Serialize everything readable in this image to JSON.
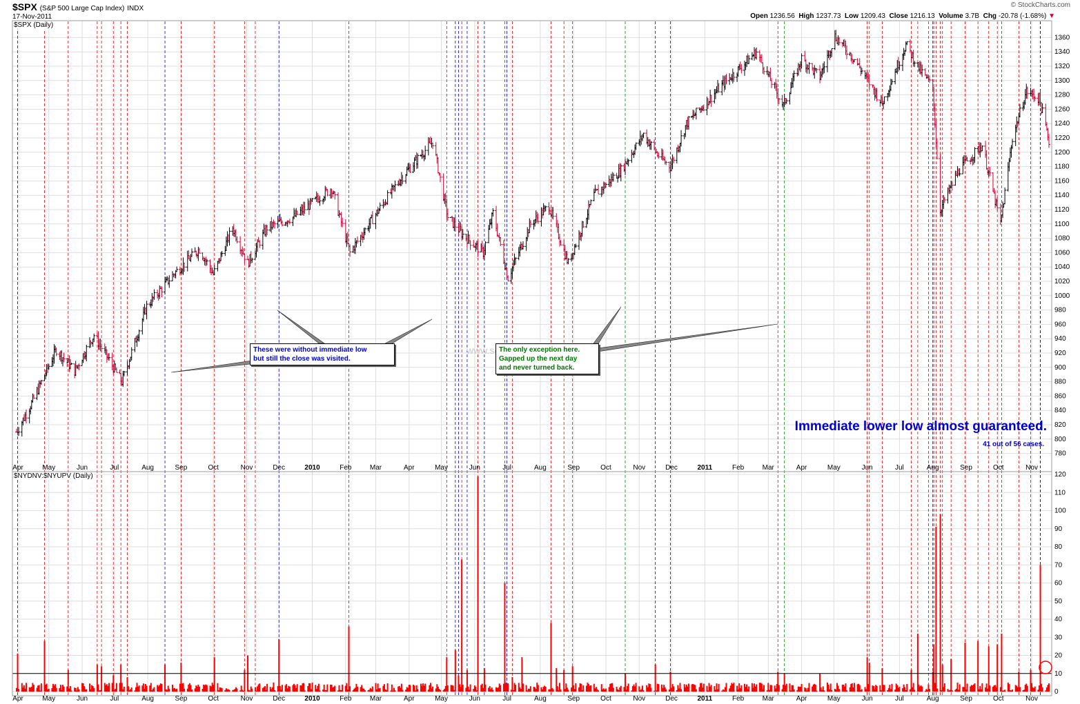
{
  "header": {
    "symbol": "$SPX",
    "description": "(S&P 500 Large Cap Index)",
    "exchange": "INDX",
    "date": "17-Nov-2011",
    "brand": "© StockCharts.com",
    "open_label": "Open",
    "open": "1236.56",
    "high_label": "High",
    "high": "1237.73",
    "low_label": "Low",
    "low": "1209.43",
    "close_label": "Close",
    "close": "1216.13",
    "volume_label": "Volume",
    "volume": "3.7B",
    "chg_label": "Chg",
    "chg": "-20.78 (-1.68%)"
  },
  "colors": {
    "up": "#000000",
    "down": "#cc0033",
    "red_line": "#e00000",
    "blue_line": "#0000cc",
    "green_line": "#008800",
    "bar": "#ff0000",
    "grid": "#dddddd"
  },
  "annotations": {
    "blue_note": [
      "These were without immediate low",
      "but still the close was visited."
    ],
    "green_note": [
      "The only exception here.",
      "Gapped up the next day",
      "and never turned back."
    ],
    "big": "Immediate lower low almost guaranteed.",
    "small": "41 out of 56 cases.",
    "watermark": "www.sobreanalisis.com"
  },
  "chart_data": [
    {
      "type": "candlestick",
      "title": "$SPX (Daily)",
      "ylim": [
        770,
        1370
      ],
      "yticks": [
        780,
        800,
        820,
        840,
        860,
        880,
        900,
        920,
        940,
        960,
        980,
        1000,
        1020,
        1040,
        1060,
        1080,
        1100,
        1120,
        1140,
        1160,
        1180,
        1200,
        1220,
        1240,
        1260,
        1280,
        1300,
        1320,
        1340,
        1360
      ],
      "x_labels": [
        "Apr",
        "May",
        "Jun",
        "Jul",
        "Aug",
        "Sep",
        "Oct",
        "Nov",
        "Dec",
        "2010",
        "Feb",
        "Mar",
        "Apr",
        "May",
        "Jun",
        "Jul",
        "Aug",
        "Sep",
        "Oct",
        "Nov",
        "Dec",
        "2011",
        "Feb",
        "Mar",
        "Apr",
        "May",
        "Jun",
        "Jul",
        "Aug",
        "Sep",
        "Oct",
        "Nov"
      ],
      "x_start": "2009-04-01",
      "x_end": "2011-11-17",
      "close_path": [
        [
          "2009-04-01",
          810
        ],
        [
          "2009-04-15",
          850
        ],
        [
          "2009-05-08",
          925
        ],
        [
          "2009-05-25",
          895
        ],
        [
          "2009-06-12",
          945
        ],
        [
          "2009-07-08",
          880
        ],
        [
          "2009-07-31",
          985
        ],
        [
          "2009-08-25",
          1030
        ],
        [
          "2009-09-18",
          1065
        ],
        [
          "2009-10-01",
          1030
        ],
        [
          "2009-10-19",
          1095
        ],
        [
          "2009-11-02",
          1045
        ],
        [
          "2009-11-20",
          1095
        ],
        [
          "2009-12-15",
          1110
        ],
        [
          "2010-01-19",
          1150
        ],
        [
          "2010-02-05",
          1060
        ],
        [
          "2010-02-25",
          1105
        ],
        [
          "2010-03-25",
          1165
        ],
        [
          "2010-04-23",
          1215
        ],
        [
          "2010-05-07",
          1110
        ],
        [
          "2010-05-21",
          1085
        ],
        [
          "2010-06-09",
          1060
        ],
        [
          "2010-06-18",
          1115
        ],
        [
          "2010-07-02",
          1025
        ],
        [
          "2010-07-23",
          1100
        ],
        [
          "2010-08-09",
          1125
        ],
        [
          "2010-08-27",
          1045
        ],
        [
          "2010-09-20",
          1140
        ],
        [
          "2010-10-15",
          1175
        ],
        [
          "2010-11-05",
          1225
        ],
        [
          "2010-11-19",
          1195
        ],
        [
          "2010-11-30",
          1180
        ],
        [
          "2010-12-15",
          1240
        ],
        [
          "2011-01-18",
          1295
        ],
        [
          "2011-02-18",
          1340
        ],
        [
          "2011-03-15",
          1265
        ],
        [
          "2011-04-01",
          1330
        ],
        [
          "2011-04-18",
          1305
        ],
        [
          "2011-05-02",
          1362
        ],
        [
          "2011-05-20",
          1330
        ],
        [
          "2011-06-15",
          1268
        ],
        [
          "2011-07-07",
          1350
        ],
        [
          "2011-07-20",
          1315
        ],
        [
          "2011-08-01",
          1290
        ],
        [
          "2011-08-08",
          1120
        ],
        [
          "2011-08-25",
          1175
        ],
        [
          "2011-09-16",
          1210
        ],
        [
          "2011-10-03",
          1100
        ],
        [
          "2011-10-14",
          1220
        ],
        [
          "2011-10-27",
          1285
        ],
        [
          "2011-11-08",
          1275
        ],
        [
          "2011-11-17",
          1216
        ]
      ],
      "vertical_markers": {
        "red": [
          "2009-04-27",
          "2009-05-19",
          "2009-06-15",
          "2009-06-19",
          "2009-06-30",
          "2009-07-07",
          "2009-07-13",
          "2009-09-01",
          "2009-10-02",
          "2009-10-30",
          "2009-11-09",
          "2010-02-04",
          "2010-05-06",
          "2010-05-20",
          "2010-06-04",
          "2010-06-29",
          "2010-07-06",
          "2010-08-11",
          "2010-08-23",
          "2010-08-31",
          "2011-03-10",
          "2011-06-01",
          "2011-06-03",
          "2011-06-15",
          "2011-07-12",
          "2011-07-18",
          "2011-07-28",
          "2011-08-02",
          "2011-08-04",
          "2011-08-08",
          "2011-08-10",
          "2011-08-18",
          "2011-08-31",
          "2011-09-12",
          "2011-09-22",
          "2011-09-30",
          "2011-10-04",
          "2011-10-20",
          "2011-10-31",
          "2011-11-09"
        ],
        "blue": [
          "2009-04-02",
          "2009-08-17",
          "2009-12-01",
          "2010-05-14",
          "2010-05-17",
          "2010-05-25",
          "2010-06-10",
          "2010-07-01",
          "2010-11-16",
          "2010-11-30",
          "2011-08-01",
          "2011-11-09"
        ],
        "green": [
          "2010-10-19",
          "2011-03-16"
        ]
      }
    },
    {
      "type": "bar",
      "title": "$NYDNV:$NYUPV (Daily)",
      "ylim": [
        0,
        120
      ],
      "yticks": [
        0,
        10,
        20,
        30,
        40,
        50,
        60,
        70,
        80,
        90,
        100,
        110,
        120
      ],
      "reference_line": 10,
      "spikes": [
        [
          "2009-04-02",
          21
        ],
        [
          "2009-04-27",
          28
        ],
        [
          "2009-05-19",
          12
        ],
        [
          "2009-06-15",
          15
        ],
        [
          "2009-06-19",
          14
        ],
        [
          "2009-06-30",
          9
        ],
        [
          "2009-07-07",
          15
        ],
        [
          "2009-07-13",
          8
        ],
        [
          "2009-08-17",
          15
        ],
        [
          "2009-09-01",
          16
        ],
        [
          "2009-10-02",
          19
        ],
        [
          "2009-10-30",
          12
        ],
        [
          "2009-11-02",
          20
        ],
        [
          "2009-12-01",
          29
        ],
        [
          "2010-02-04",
          36
        ],
        [
          "2010-05-06",
          19
        ],
        [
          "2010-05-14",
          23
        ],
        [
          "2010-05-17",
          9
        ],
        [
          "2010-05-20",
          73
        ],
        [
          "2010-05-25",
          12
        ],
        [
          "2010-06-04",
          119
        ],
        [
          "2010-06-10",
          13
        ],
        [
          "2010-06-29",
          60
        ],
        [
          "2010-07-06",
          8
        ],
        [
          "2010-07-15",
          19
        ],
        [
          "2010-08-11",
          38
        ],
        [
          "2010-08-16",
          13
        ],
        [
          "2010-08-23",
          12
        ],
        [
          "2010-08-31",
          14
        ],
        [
          "2010-10-19",
          10
        ],
        [
          "2010-11-16",
          15
        ],
        [
          "2010-11-30",
          11
        ],
        [
          "2011-03-10",
          11
        ],
        [
          "2011-03-16",
          10
        ],
        [
          "2011-04-18",
          10
        ],
        [
          "2011-06-01",
          19
        ],
        [
          "2011-06-03",
          16
        ],
        [
          "2011-06-15",
          13
        ],
        [
          "2011-07-12",
          12
        ],
        [
          "2011-07-18",
          32
        ],
        [
          "2011-08-01",
          11
        ],
        [
          "2011-08-02",
          26
        ],
        [
          "2011-08-04",
          91
        ],
        [
          "2011-08-08",
          98
        ],
        [
          "2011-08-10",
          15
        ],
        [
          "2011-08-18",
          18
        ],
        [
          "2011-08-31",
          27
        ],
        [
          "2011-09-12",
          28
        ],
        [
          "2011-09-22",
          25
        ],
        [
          "2011-09-30",
          26
        ],
        [
          "2011-10-04",
          32
        ],
        [
          "2011-10-20",
          11
        ],
        [
          "2011-10-31",
          12
        ],
        [
          "2011-11-09",
          70
        ]
      ]
    }
  ]
}
